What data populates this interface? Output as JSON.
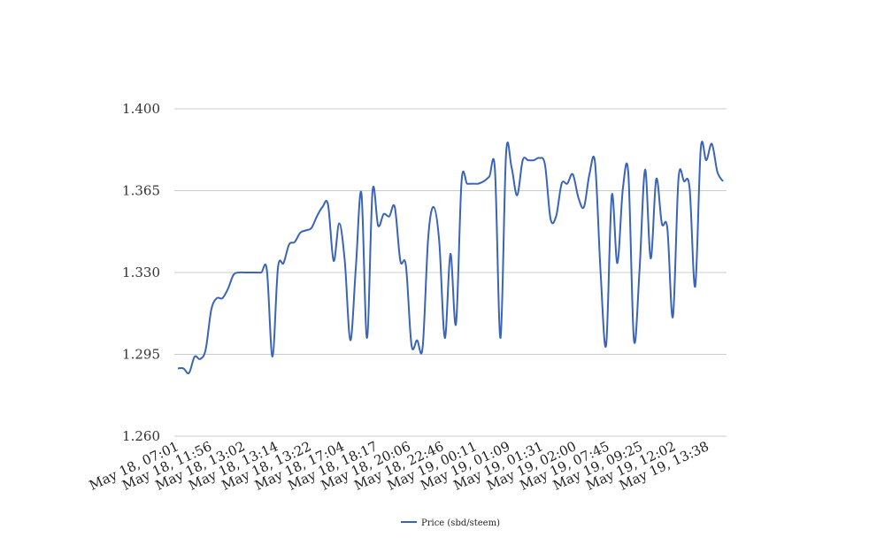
{
  "chart_data": {
    "type": "line",
    "title": "",
    "xlabel": "",
    "ylabel": "",
    "ylim": [
      1.26,
      1.4
    ],
    "yticks": [
      "1.260",
      "1.295",
      "1.330",
      "1.365",
      "1.400"
    ],
    "xtick_labels": [
      "May 18, 07:01",
      "May 18, 11:56",
      "May 18, 13:02",
      "May 18, 13:14",
      "May 18, 13:22",
      "May 18, 17:04",
      "May 18, 18:17",
      "May 18, 20:06",
      "May 18, 22:46",
      "May 19, 00:11",
      "May 19, 01:09",
      "May 19, 01:31",
      "May 19, 02:00",
      "May 19, 07:45",
      "May 19, 09:25",
      "May 19, 12:02",
      "May 19, 13:38"
    ],
    "grid": true,
    "legend_position": "bottom",
    "series": [
      {
        "name": "Price (sbd/steem)",
        "color": "#3a64b8",
        "values": [
          1.289,
          1.289,
          1.287,
          1.294,
          1.293,
          1.297,
          1.314,
          1.319,
          1.319,
          1.323,
          1.329,
          1.33,
          1.33,
          1.33,
          1.33,
          1.33,
          1.331,
          1.294,
          1.332,
          1.334,
          1.342,
          1.343,
          1.347,
          1.348,
          1.349,
          1.354,
          1.358,
          1.359,
          1.335,
          1.351,
          1.335,
          1.301,
          1.332,
          1.364,
          1.302,
          1.365,
          1.35,
          1.355,
          1.354,
          1.358,
          1.335,
          1.333,
          1.299,
          1.301,
          1.298,
          1.345,
          1.358,
          1.343,
          1.302,
          1.338,
          1.308,
          1.369,
          1.368,
          1.368,
          1.368,
          1.369,
          1.371,
          1.374,
          1.302,
          1.381,
          1.375,
          1.363,
          1.378,
          1.378,
          1.378,
          1.379,
          1.376,
          1.353,
          1.354,
          1.368,
          1.368,
          1.372,
          1.362,
          1.358,
          1.372,
          1.377,
          1.33,
          1.299,
          1.363,
          1.334,
          1.366,
          1.372,
          1.301,
          1.331,
          1.374,
          1.336,
          1.37,
          1.351,
          1.349,
          1.311,
          1.37,
          1.369,
          1.366,
          1.324,
          1.383,
          1.378,
          1.385,
          1.373,
          1.369
        ]
      }
    ]
  }
}
